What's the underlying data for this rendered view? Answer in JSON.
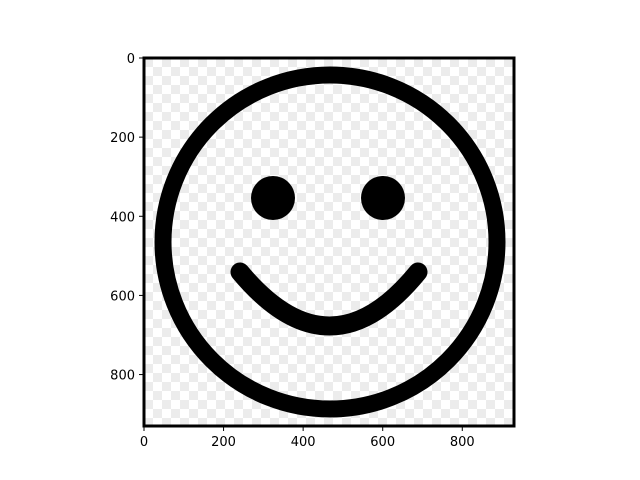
{
  "chart_data": {
    "type": "image",
    "xlim": [
      0,
      930
    ],
    "ylim": [
      930,
      0
    ],
    "x_ticks": [
      {
        "value": 0,
        "label": "0"
      },
      {
        "value": 200,
        "label": "200"
      },
      {
        "value": 400,
        "label": "400"
      },
      {
        "value": 600,
        "label": "600"
      },
      {
        "value": 800,
        "label": "800"
      }
    ],
    "y_ticks": [
      {
        "value": 0,
        "label": "0"
      },
      {
        "value": 200,
        "label": "200"
      },
      {
        "value": 400,
        "label": "400"
      },
      {
        "value": 600,
        "label": "600"
      },
      {
        "value": 800,
        "label": "800"
      }
    ],
    "image_content": {
      "subject": "smiley-face",
      "face_center": [
        467,
        465
      ],
      "face_radius": 418,
      "left_eye_center": [
        330,
        352
      ],
      "right_eye_center": [
        606,
        352
      ],
      "eye_radius": 55,
      "mouth_left_end": [
        243,
        545
      ],
      "mouth_right_end": [
        695,
        545
      ],
      "mouth_bottom": [
        467,
        670
      ],
      "line_color": "#000000",
      "background": "transparent-checkerboard"
    },
    "grid": false
  }
}
